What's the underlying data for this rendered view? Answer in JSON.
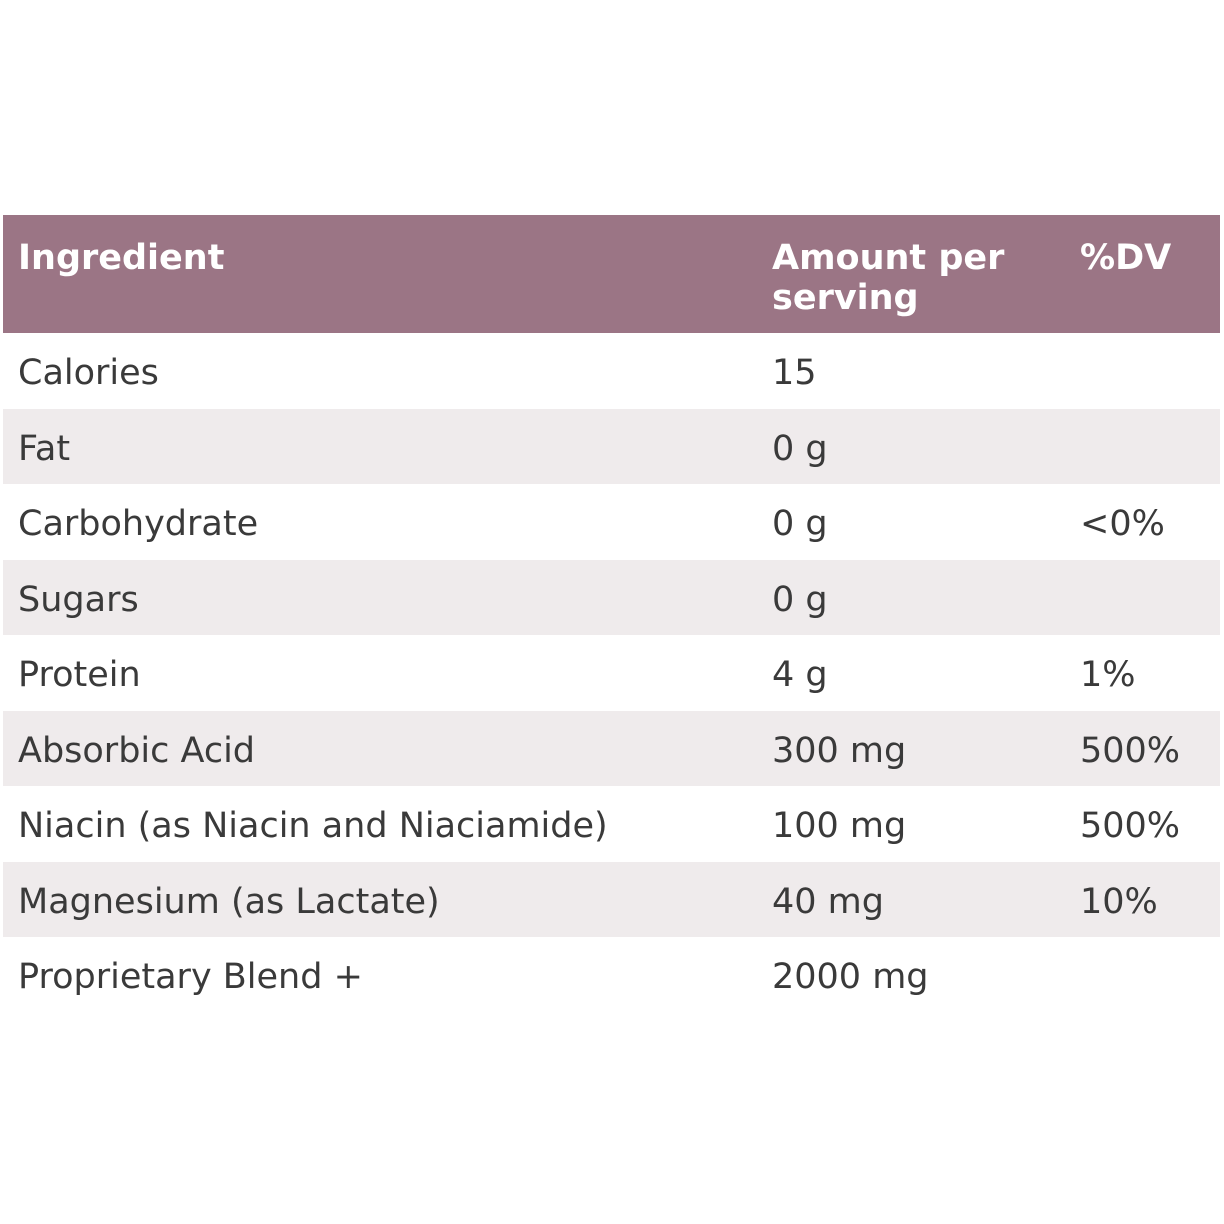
{
  "table": {
    "header": {
      "ingredient": "Ingredient",
      "amount": "Amount per serving",
      "dv": "%DV"
    },
    "rows": [
      {
        "ingredient": "Calories",
        "amount": "15"
      },
      {
        "ingredient": "Fat",
        "amount": "0 g"
      },
      {
        "ingredient": "Carbohydrate",
        "amount": "0 g",
        "dv": "<0%"
      },
      {
        "ingredient": "Sugars",
        "amount": "0 g"
      },
      {
        "ingredient": "Protein",
        "amount": "4 g",
        "dv": "1%"
      },
      {
        "ingredient": "Absorbic Acid",
        "amount": "300 mg",
        "dv": "500%"
      },
      {
        "ingredient": "Niacin (as Niacin and Niaciamide)",
        "amount": "100 mg",
        "dv": "500%"
      },
      {
        "ingredient": "Magnesium (as Lactate)",
        "amount": "40 mg",
        "dv": "10%"
      },
      {
        "ingredient": "Proprietary Blend +",
        "amount": "2000 mg"
      }
    ]
  }
}
